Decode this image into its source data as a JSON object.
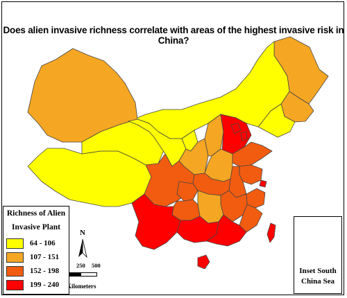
{
  "title": "Does alien invasive richness correlate with areas of the highest invasive risk in China?",
  "legend": {
    "title_line1": "Richness of Alien",
    "title_line2": "Invasive Plant",
    "items": [
      {
        "range": "64 - 106",
        "color": "#ffff00"
      },
      {
        "range": "107 - 151",
        "color": "#f5a623"
      },
      {
        "range": "152 - 198",
        "color": "#f25c10"
      },
      {
        "range": "199 - 240",
        "color": "#ff0000"
      }
    ]
  },
  "north_label": "N",
  "scale_bar": {
    "ticks": [
      "0",
      "250",
      "500"
    ],
    "unit": "Kilometers"
  },
  "inset_label": {
    "line1": "Inset South",
    "line2": "China Sea"
  },
  "colors": {
    "class1": "#ffff00",
    "class2": "#f5a623",
    "class3": "#f25c10",
    "class4": "#ff0000",
    "border": "#444444"
  }
}
